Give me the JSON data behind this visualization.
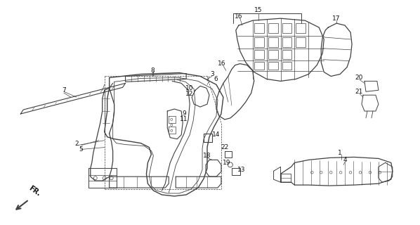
{
  "background_color": "#ffffff",
  "line_color": "#404040",
  "label_color": "#111111",
  "fig_width": 5.98,
  "fig_height": 3.2,
  "dpi": 100
}
